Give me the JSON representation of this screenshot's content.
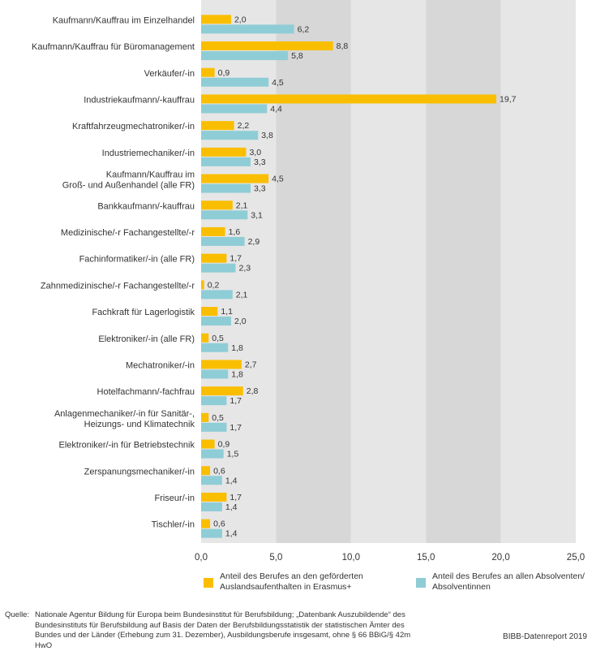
{
  "chart_data": {
    "type": "bar",
    "orientation": "horizontal",
    "categories": [
      [
        "Kaufmann/Kauffrau im Einzelhandel"
      ],
      [
        "Kaufmann/Kauffrau für Büromanagement"
      ],
      [
        "Verkäufer/-in"
      ],
      [
        "Industriekaufmann/-kauffrau"
      ],
      [
        "Kraftfahrzeugmechatroniker/-in"
      ],
      [
        "Industriemechaniker/-in"
      ],
      [
        "Kaufmann/Kauffrau im",
        "Groß- und Außenhandel (alle FR)"
      ],
      [
        "Bankkaufmann/-kauffrau"
      ],
      [
        "Medizinische/-r Fachangestellte/-r"
      ],
      [
        "Fachinformatiker/-in (alle FR)"
      ],
      [
        "Zahnmedizinische/-r Fachangestellte/-r"
      ],
      [
        "Fachkraft für Lagerlogistik"
      ],
      [
        "Elektroniker/-in (alle FR)"
      ],
      [
        "Mechatroniker/-in"
      ],
      [
        "Hotelfachmann/-fachfrau"
      ],
      [
        "Anlagenmechaniker/-in für Sanitär-,",
        "Heizungs- und Klimatechnik"
      ],
      [
        "Elektroniker/-in für Betriebstechnik"
      ],
      [
        "Zerspanungsmechaniker/-in"
      ],
      [
        "Friseur/-in"
      ],
      [
        "Tischler/-in"
      ]
    ],
    "series": [
      {
        "name": "Anteil des Berufes an den geförderten Auslandsaufenthalten in Erasmus+",
        "color": "#FABE00",
        "values": [
          2.0,
          8.8,
          0.9,
          19.7,
          2.2,
          3.0,
          4.5,
          2.1,
          1.6,
          1.7,
          0.2,
          1.1,
          0.5,
          2.7,
          2.8,
          0.5,
          0.9,
          0.6,
          1.7,
          0.6
        ],
        "labels": [
          "2,0",
          "8,8",
          "0,9",
          "19,7",
          "2,2",
          "3,0",
          "4,5",
          "2,1",
          "1,6",
          "1,7",
          "0,2",
          "1,1",
          "0,5",
          "2,7",
          "2,8",
          "0,5",
          "0,9",
          "0,6",
          "1,7",
          "0,6"
        ]
      },
      {
        "name": "Anteil des Berufes an allen Absolventen/ Absolventinnen",
        "color": "#8FCDD6",
        "values": [
          6.2,
          5.8,
          4.5,
          4.4,
          3.8,
          3.3,
          3.3,
          3.1,
          2.9,
          2.3,
          2.1,
          2.0,
          1.8,
          1.8,
          1.7,
          1.7,
          1.5,
          1.4,
          1.4,
          1.4
        ],
        "labels": [
          "6,2",
          "5,8",
          "4,5",
          "4,4",
          "3,8",
          "3,3",
          "3,3",
          "3,1",
          "2,9",
          "2,3",
          "2,1",
          "2,0",
          "1,8",
          "1,8",
          "1,7",
          "1,7",
          "1,5",
          "1,4",
          "1,4",
          "1,4"
        ]
      }
    ],
    "xlim": [
      0,
      25
    ],
    "xticks": [
      0,
      5,
      10,
      15,
      20,
      25
    ],
    "xtick_labels": [
      "0,0",
      "5,0",
      "10,0",
      "15,0",
      "20,0",
      "25,0"
    ],
    "grid": "vertical",
    "background_bands": [
      "#E6E6E6",
      "#D7D7D7"
    ],
    "legend": {
      "position": "bottom",
      "items": [
        [
          "Anteil des Berufes an den geförderten",
          "Auslandsaufenthalten in Erasmus+"
        ],
        [
          "Anteil des Berufes an allen Absolventen/",
          "Absolventinnen"
        ]
      ]
    }
  },
  "source": {
    "label": "Quelle:",
    "text": "Nationale Agentur Bildung für Europa beim Bundesinstitut für Berufsbildung; „Datenbank Auszubildende“ des Bundesinstituts für Berufsbildung auf Basis der Daten der Berufsbildungsstatistik der statistischen Ämter des Bundes und der Länder (Erhebung zum 31. Dezember), Ausbildungsberufe insgesamt, ohne § 66 BBiG/§ 42m HwO"
  },
  "credit": "BIBB-Datenreport 2019"
}
